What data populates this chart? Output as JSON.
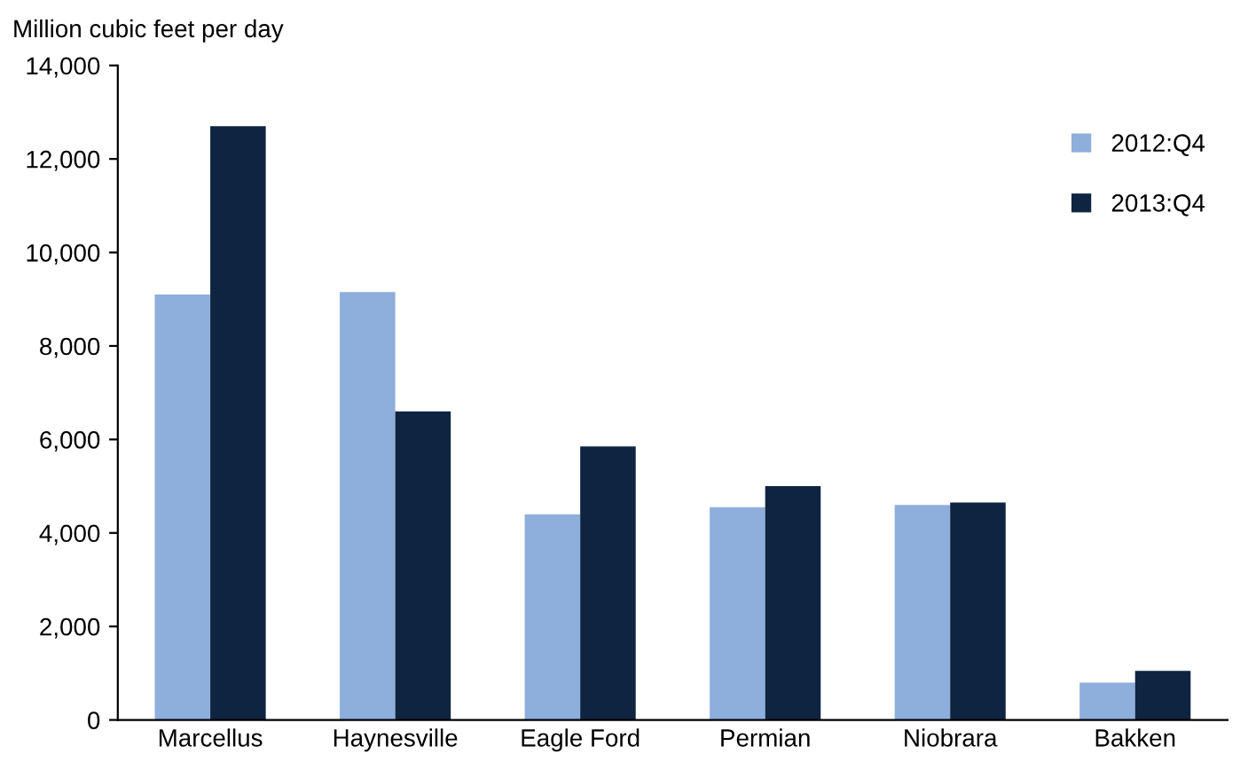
{
  "chart_data": {
    "type": "bar",
    "ylabel": "Million cubic feet per day",
    "categories": [
      "Marcellus",
      "Haynesville",
      "Eagle Ford",
      "Permian",
      "Niobrara",
      "Bakken"
    ],
    "series": [
      {
        "name": "2012:Q4",
        "color": "#8eaedc",
        "values": [
          9100,
          9150,
          4400,
          4550,
          4600,
          800
        ]
      },
      {
        "name": "2013:Q4",
        "color": "#0f2440",
        "values": [
          12700,
          6600,
          5850,
          5000,
          4650,
          1050
        ]
      }
    ],
    "ylim": [
      0,
      14000
    ],
    "yticks": [
      {
        "value": 0,
        "label": "0"
      },
      {
        "value": 2000,
        "label": "2,000"
      },
      {
        "value": 4000,
        "label": "4,000"
      },
      {
        "value": 6000,
        "label": "6,000"
      },
      {
        "value": 8000,
        "label": "8,000"
      },
      {
        "value": 10000,
        "label": "10,000"
      },
      {
        "value": 12000,
        "label": "12,000"
      },
      {
        "value": 14000,
        "label": "14,000"
      }
    ],
    "grid": false,
    "legend": "top right"
  }
}
